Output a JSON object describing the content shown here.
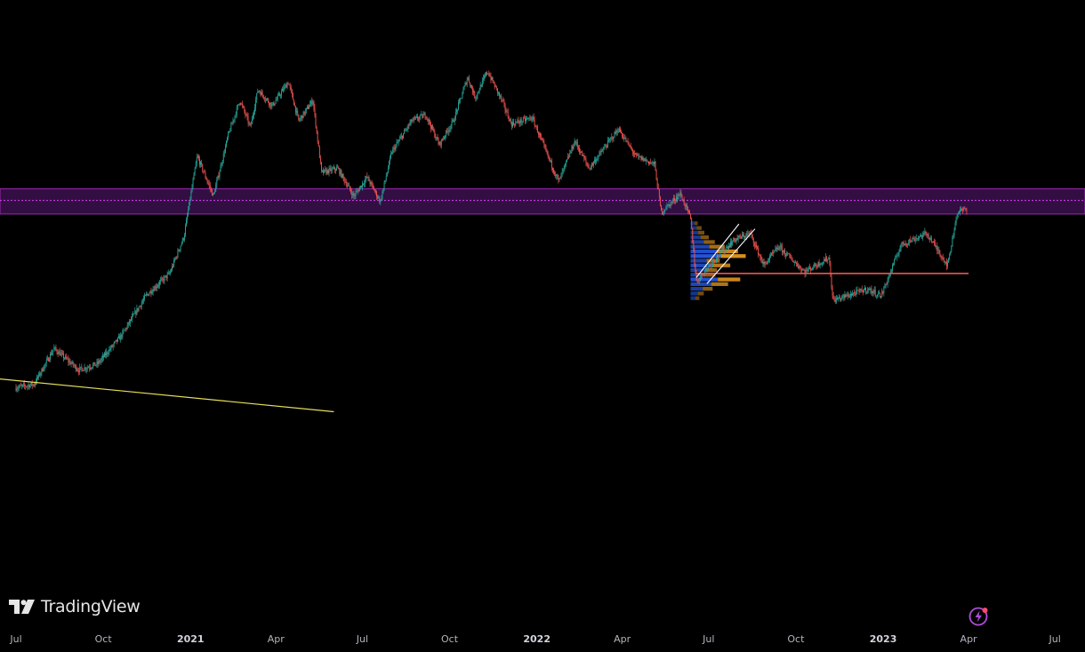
{
  "brand": {
    "name": "TradingView",
    "logo": "tv-logo-icon"
  },
  "status_icon": "lightning-icon",
  "colors": {
    "background": "#000000",
    "candle_up": "#26a69a",
    "candle_down": "#ef5350",
    "zone_fill": "#5c1a7a",
    "zone_border": "#9c27b0",
    "zone_midline": "#e040fb",
    "trendline": "#e8e05a",
    "support_line": "#ef5350",
    "channel": "#ffffff",
    "profile_primary": "#2962ff",
    "profile_secondary": "#f0a020"
  },
  "chart_data": {
    "type": "candlestick",
    "x_axis": {
      "ticks": [
        {
          "label": "Jul",
          "month": "2020-07",
          "major": false
        },
        {
          "label": "Oct",
          "month": "2020-10",
          "major": false
        },
        {
          "label": "2021",
          "month": "2021-01",
          "major": true
        },
        {
          "label": "Apr",
          "month": "2021-04",
          "major": false
        },
        {
          "label": "Jul",
          "month": "2021-07",
          "major": false
        },
        {
          "label": "Oct",
          "month": "2021-10",
          "major": false
        },
        {
          "label": "2022",
          "month": "2022-01",
          "major": true
        },
        {
          "label": "Apr",
          "month": "2022-04",
          "major": false
        },
        {
          "label": "Jul",
          "month": "2022-07",
          "major": false
        },
        {
          "label": "Oct",
          "month": "2022-10",
          "major": false
        },
        {
          "label": "2023",
          "month": "2023-01",
          "major": true
        },
        {
          "label": "Apr",
          "month": "2023-04",
          "major": false
        },
        {
          "label": "Jul",
          "month": "2023-07",
          "major": false
        }
      ]
    },
    "price_path": [
      [
        "2020-07-01",
        9200
      ],
      [
        "2020-07-20",
        9400
      ],
      [
        "2020-08-10",
        11800
      ],
      [
        "2020-09-05",
        10300
      ],
      [
        "2020-09-25",
        10700
      ],
      [
        "2020-10-20",
        12800
      ],
      [
        "2020-11-15",
        16500
      ],
      [
        "2020-12-10",
        19000
      ],
      [
        "2020-12-25",
        24000
      ],
      [
        "2021-01-08",
        40000
      ],
      [
        "2021-01-25",
        31000
      ],
      [
        "2021-02-10",
        46000
      ],
      [
        "2021-02-22",
        57000
      ],
      [
        "2021-03-05",
        48000
      ],
      [
        "2021-03-13",
        61000
      ],
      [
        "2021-03-28",
        55000
      ],
      [
        "2021-04-14",
        64000
      ],
      [
        "2021-04-25",
        50000
      ],
      [
        "2021-05-10",
        57000
      ],
      [
        "2021-05-19",
        36000
      ],
      [
        "2021-06-05",
        37000
      ],
      [
        "2021-06-22",
        31000
      ],
      [
        "2021-07-06",
        35000
      ],
      [
        "2021-07-20",
        30000
      ],
      [
        "2021-08-01",
        41000
      ],
      [
        "2021-08-22",
        50000
      ],
      [
        "2021-09-06",
        52000
      ],
      [
        "2021-09-20",
        43000
      ],
      [
        "2021-10-05",
        50000
      ],
      [
        "2021-10-20",
        66000
      ],
      [
        "2021-10-28",
        58000
      ],
      [
        "2021-11-10",
        68500
      ],
      [
        "2021-11-25",
        57000
      ],
      [
        "2021-12-05",
        49000
      ],
      [
        "2021-12-27",
        51000
      ],
      [
        "2022-01-10",
        41500
      ],
      [
        "2022-01-24",
        34000
      ],
      [
        "2022-02-10",
        44000
      ],
      [
        "2022-02-25",
        37000
      ],
      [
        "2022-03-28",
        47500
      ],
      [
        "2022-04-15",
        40000
      ],
      [
        "2022-05-05",
        38000
      ],
      [
        "2022-05-12",
        28000
      ],
      [
        "2022-06-01",
        31500
      ],
      [
        "2022-06-12",
        27000
      ],
      [
        "2022-06-18",
        18000
      ],
      [
        "2022-07-05",
        20500
      ],
      [
        "2022-07-28",
        23500
      ],
      [
        "2022-08-14",
        24500
      ],
      [
        "2022-08-28",
        20000
      ],
      [
        "2022-09-13",
        22500
      ],
      [
        "2022-10-10",
        19200
      ],
      [
        "2022-11-05",
        21000
      ],
      [
        "2022-11-09",
        16000
      ],
      [
        "2022-12-15",
        17200
      ],
      [
        "2022-12-30",
        16500
      ],
      [
        "2023-01-20",
        22800
      ],
      [
        "2023-02-16",
        24500
      ],
      [
        "2023-03-10",
        20000
      ],
      [
        "2023-03-20",
        28000
      ],
      [
        "2023-03-30",
        28600
      ]
    ],
    "overlays": {
      "resistance_zone": {
        "from": 27700,
        "to": 32500,
        "midline": 30200
      },
      "support_line": {
        "price": 19000,
        "start": "2022-06-18",
        "end": "2023-04-01"
      },
      "trendline": {
        "start": [
          "2020-06-01",
          9800
        ],
        "end": [
          "2021-06-01",
          7900
        ]
      },
      "volume_profile": {
        "start": "2022-06-12",
        "low": 16000,
        "high": 26500,
        "buckets": [
          0.13,
          0.2,
          0.25,
          0.33,
          0.44,
          0.62,
          0.86,
          1.0,
          0.53,
          0.72,
          0.48,
          0.45,
          0.9,
          0.68,
          0.4,
          0.24,
          0.16
        ]
      }
    }
  }
}
